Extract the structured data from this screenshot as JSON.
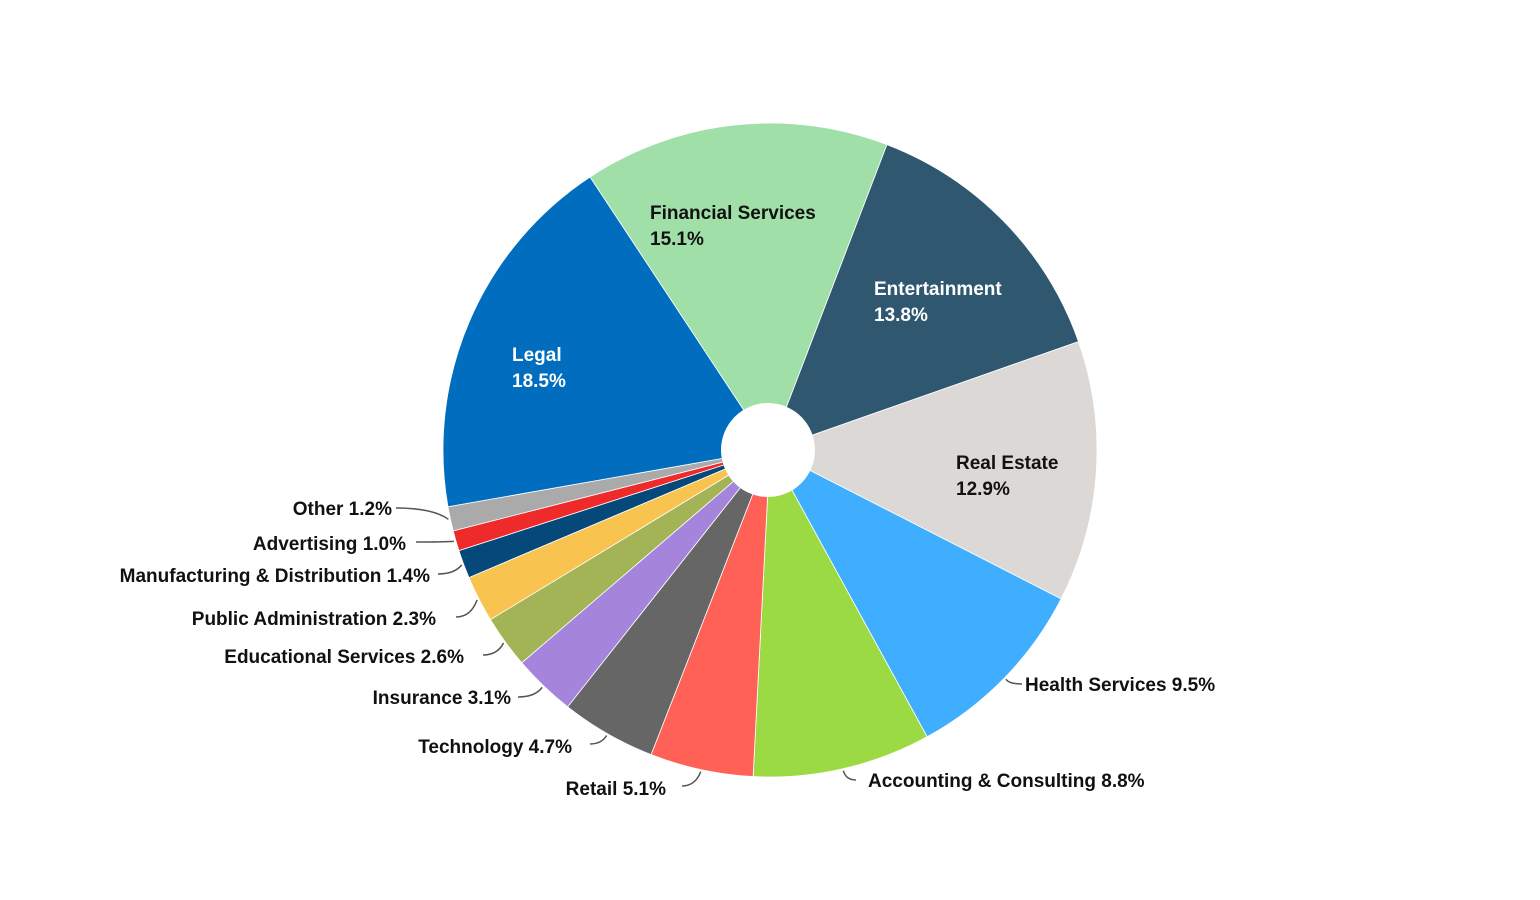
{
  "chart_data": {
    "type": "pie",
    "title": "",
    "donut": true,
    "slices": [
      {
        "label": "Financial Services",
        "value": 15.1,
        "display": "15.1%",
        "color": "#A0E0A8",
        "label_position": "inside"
      },
      {
        "label": "Entertainment",
        "value": 13.8,
        "display": "13.8%",
        "color": "#2F5870",
        "label_position": "inside"
      },
      {
        "label": "Real Estate",
        "value": 12.9,
        "display": "12.9%",
        "color": "#DCD8D6",
        "label_position": "inside"
      },
      {
        "label": "Health Services",
        "value": 9.5,
        "display": "9.5%",
        "color": "#40AEFF",
        "label_position": "outside"
      },
      {
        "label": "Accounting & Consulting",
        "value": 8.8,
        "display": "8.8%",
        "color": "#9CDA44",
        "label_position": "outside"
      },
      {
        "label": "Retail",
        "value": 5.1,
        "display": "5.1%",
        "color": "#FF6157",
        "label_position": "outside"
      },
      {
        "label": "Technology",
        "value": 4.7,
        "display": "4.7%",
        "color": "#666666",
        "label_position": "outside"
      },
      {
        "label": "Insurance",
        "value": 3.1,
        "display": "3.1%",
        "color": "#A584DC",
        "label_position": "outside"
      },
      {
        "label": "Educational Services",
        "value": 2.6,
        "display": "2.6%",
        "color": "#A2B455",
        "label_position": "outside"
      },
      {
        "label": "Public Administration",
        "value": 2.3,
        "display": "2.3%",
        "color": "#F8C34F",
        "label_position": "outside"
      },
      {
        "label": "Manufacturing & Distribution",
        "value": 1.4,
        "display": "1.4%",
        "color": "#05497B",
        "label_position": "outside"
      },
      {
        "label": "Advertising",
        "value": 1.0,
        "display": "1.0%",
        "color": "#EE2A2A",
        "label_position": "outside"
      },
      {
        "label": "Other",
        "value": 1.2,
        "display": "1.2%",
        "color": "#AAAAAA",
        "label_position": "outside"
      },
      {
        "label": "Legal",
        "value": 18.5,
        "display": "18.5%",
        "color": "#006DBF",
        "label_position": "inside"
      }
    ]
  }
}
